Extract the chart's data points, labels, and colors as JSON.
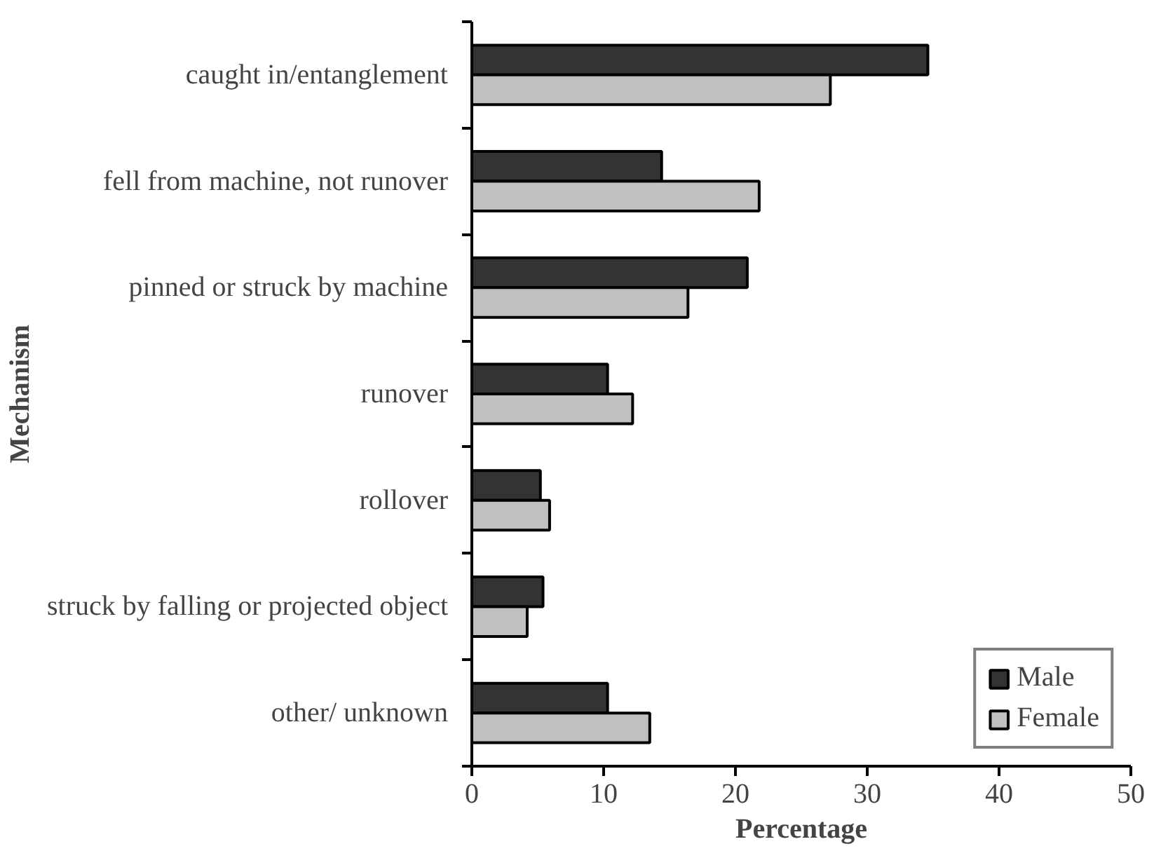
{
  "chart_data": {
    "type": "bar",
    "orientation": "horizontal",
    "xlabel": "Percentage",
    "ylabel": "Mechanism",
    "categories": [
      "caught in/entanglement",
      "fell from machine, not runover",
      "pinned or struck by machine",
      "runover",
      "rollover",
      "struck by falling or projected object",
      "other/ unknown"
    ],
    "series": [
      {
        "name": "Male",
        "color": "#333333",
        "values": [
          34.6,
          14.4,
          20.9,
          10.3,
          5.2,
          5.4,
          10.3
        ]
      },
      {
        "name": "Female",
        "color": "#c0c0c0",
        "values": [
          27.2,
          21.8,
          16.4,
          12.2,
          5.9,
          4.2,
          13.5
        ]
      }
    ],
    "xlim": [
      0,
      50
    ],
    "xticks": [
      0,
      10,
      20,
      30,
      40,
      50
    ],
    "grid": false,
    "legend": "bottom right"
  }
}
